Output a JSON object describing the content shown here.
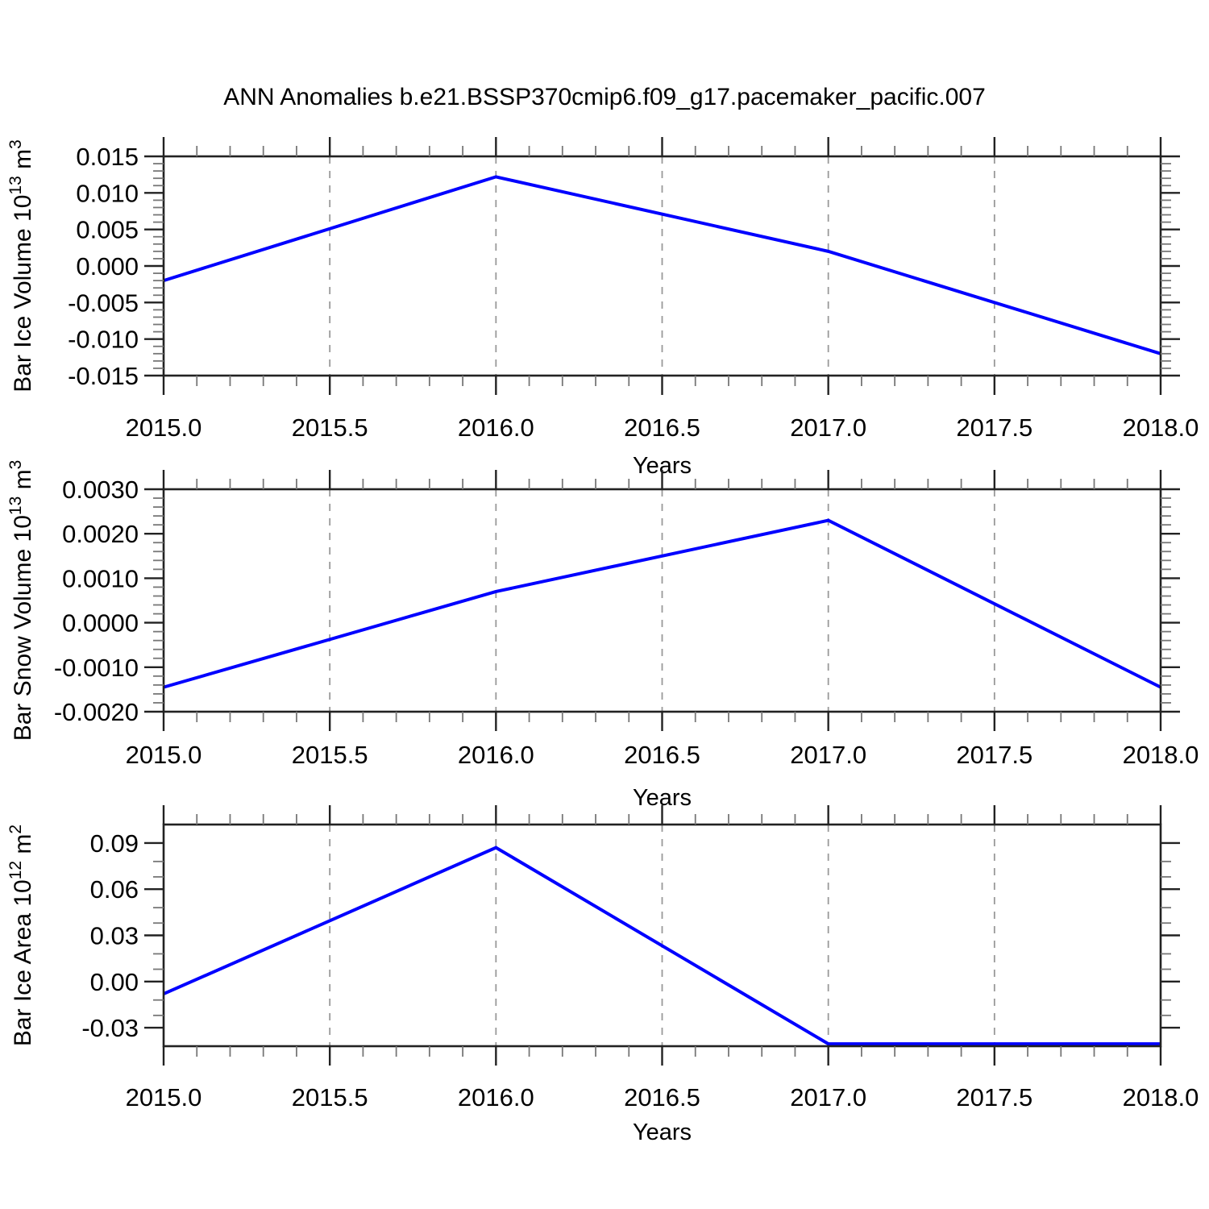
{
  "title": "ANN Anomalies b.e21.BSSP370cmip6.f09_g17.pacemaker_pacific.007",
  "line_color": "#0000FF",
  "grid_color": "#999999",
  "axis_color": "#222222",
  "minor_tick_color": "#777777",
  "x_axis": {
    "label": "Years",
    "range": [
      2015.0,
      2018.0
    ],
    "tick_values": [
      2015.0,
      2015.5,
      2016.0,
      2016.5,
      2017.0,
      2017.5,
      2018.0
    ],
    "tick_labels": [
      "2015.0",
      "2015.5",
      "2016.0",
      "2016.5",
      "2017.0",
      "2017.5",
      "2018.0"
    ],
    "minor_step": 0.1,
    "gridlines_at": [
      2015.5,
      2016.0,
      2016.5,
      2017.0,
      2017.5
    ]
  },
  "chart_data": [
    {
      "type": "line",
      "name": "ice-volume",
      "title": "",
      "xlabel": "Years",
      "ylabel": "Bar Ice Volume 10^13 m^3",
      "ylabel_parts": [
        {
          "t": "Bar Ice Volume 10"
        },
        {
          "t": "13",
          "sup": true
        },
        {
          "t": " m"
        },
        {
          "t": "3",
          "sup": true
        }
      ],
      "x": [
        2015,
        2016,
        2017,
        2018
      ],
      "y": [
        -0.002,
        0.0122,
        0.002,
        -0.012
      ],
      "ylim": [
        -0.015,
        0.015
      ],
      "yticks": {
        "values": [
          0.015,
          0.01,
          0.005,
          0.0,
          -0.005,
          -0.01,
          -0.015
        ],
        "labels": [
          "0.015",
          "0.010",
          "0.005",
          "0.000",
          "-0.005",
          "-0.010",
          "-0.015"
        ]
      },
      "y_minor_step": 0.001,
      "grid": "vertical-dashed",
      "legend": "none"
    },
    {
      "type": "line",
      "name": "snow-volume",
      "title": "",
      "xlabel": "Years",
      "ylabel": "Bar Snow Volume 10^13 m^3",
      "ylabel_parts": [
        {
          "t": "Bar Snow Volume 10"
        },
        {
          "t": "13",
          "sup": true
        },
        {
          "t": " m"
        },
        {
          "t": "3",
          "sup": true
        }
      ],
      "x": [
        2015,
        2016,
        2017,
        2018
      ],
      "y": [
        -0.00145,
        0.0007,
        0.0023,
        -0.00145
      ],
      "ylim": [
        -0.002,
        0.003
      ],
      "yticks": {
        "values": [
          0.003,
          0.002,
          0.001,
          0.0,
          -0.001,
          -0.002
        ],
        "labels": [
          "0.0030",
          "0.0020",
          "0.0010",
          "0.0000",
          "-0.0010",
          "-0.0020"
        ]
      },
      "y_minor_step": 0.0002,
      "grid": "vertical-dashed",
      "legend": "none"
    },
    {
      "type": "line",
      "name": "ice-area",
      "title": "",
      "xlabel": "Years",
      "ylabel": "Bar Ice Area 10^12 m^2",
      "ylabel_parts": [
        {
          "t": "Bar Ice Area 10"
        },
        {
          "t": "12",
          "sup": true
        },
        {
          "t": " m"
        },
        {
          "t": "2",
          "sup": true
        }
      ],
      "x": [
        2015,
        2016,
        2017,
        2018
      ],
      "y": [
        -0.008,
        0.087,
        -0.0405,
        -0.0405
      ],
      "ylim": [
        -0.042,
        0.102
      ],
      "yticks": {
        "values": [
          0.09,
          0.06,
          0.03,
          0.0,
          -0.03
        ],
        "labels": [
          "0.09",
          "0.06",
          "0.03",
          "0.00",
          "-0.03"
        ]
      },
      "y_minor_step": 0.01,
      "grid": "vertical-dashed",
      "legend": "none"
    }
  ]
}
